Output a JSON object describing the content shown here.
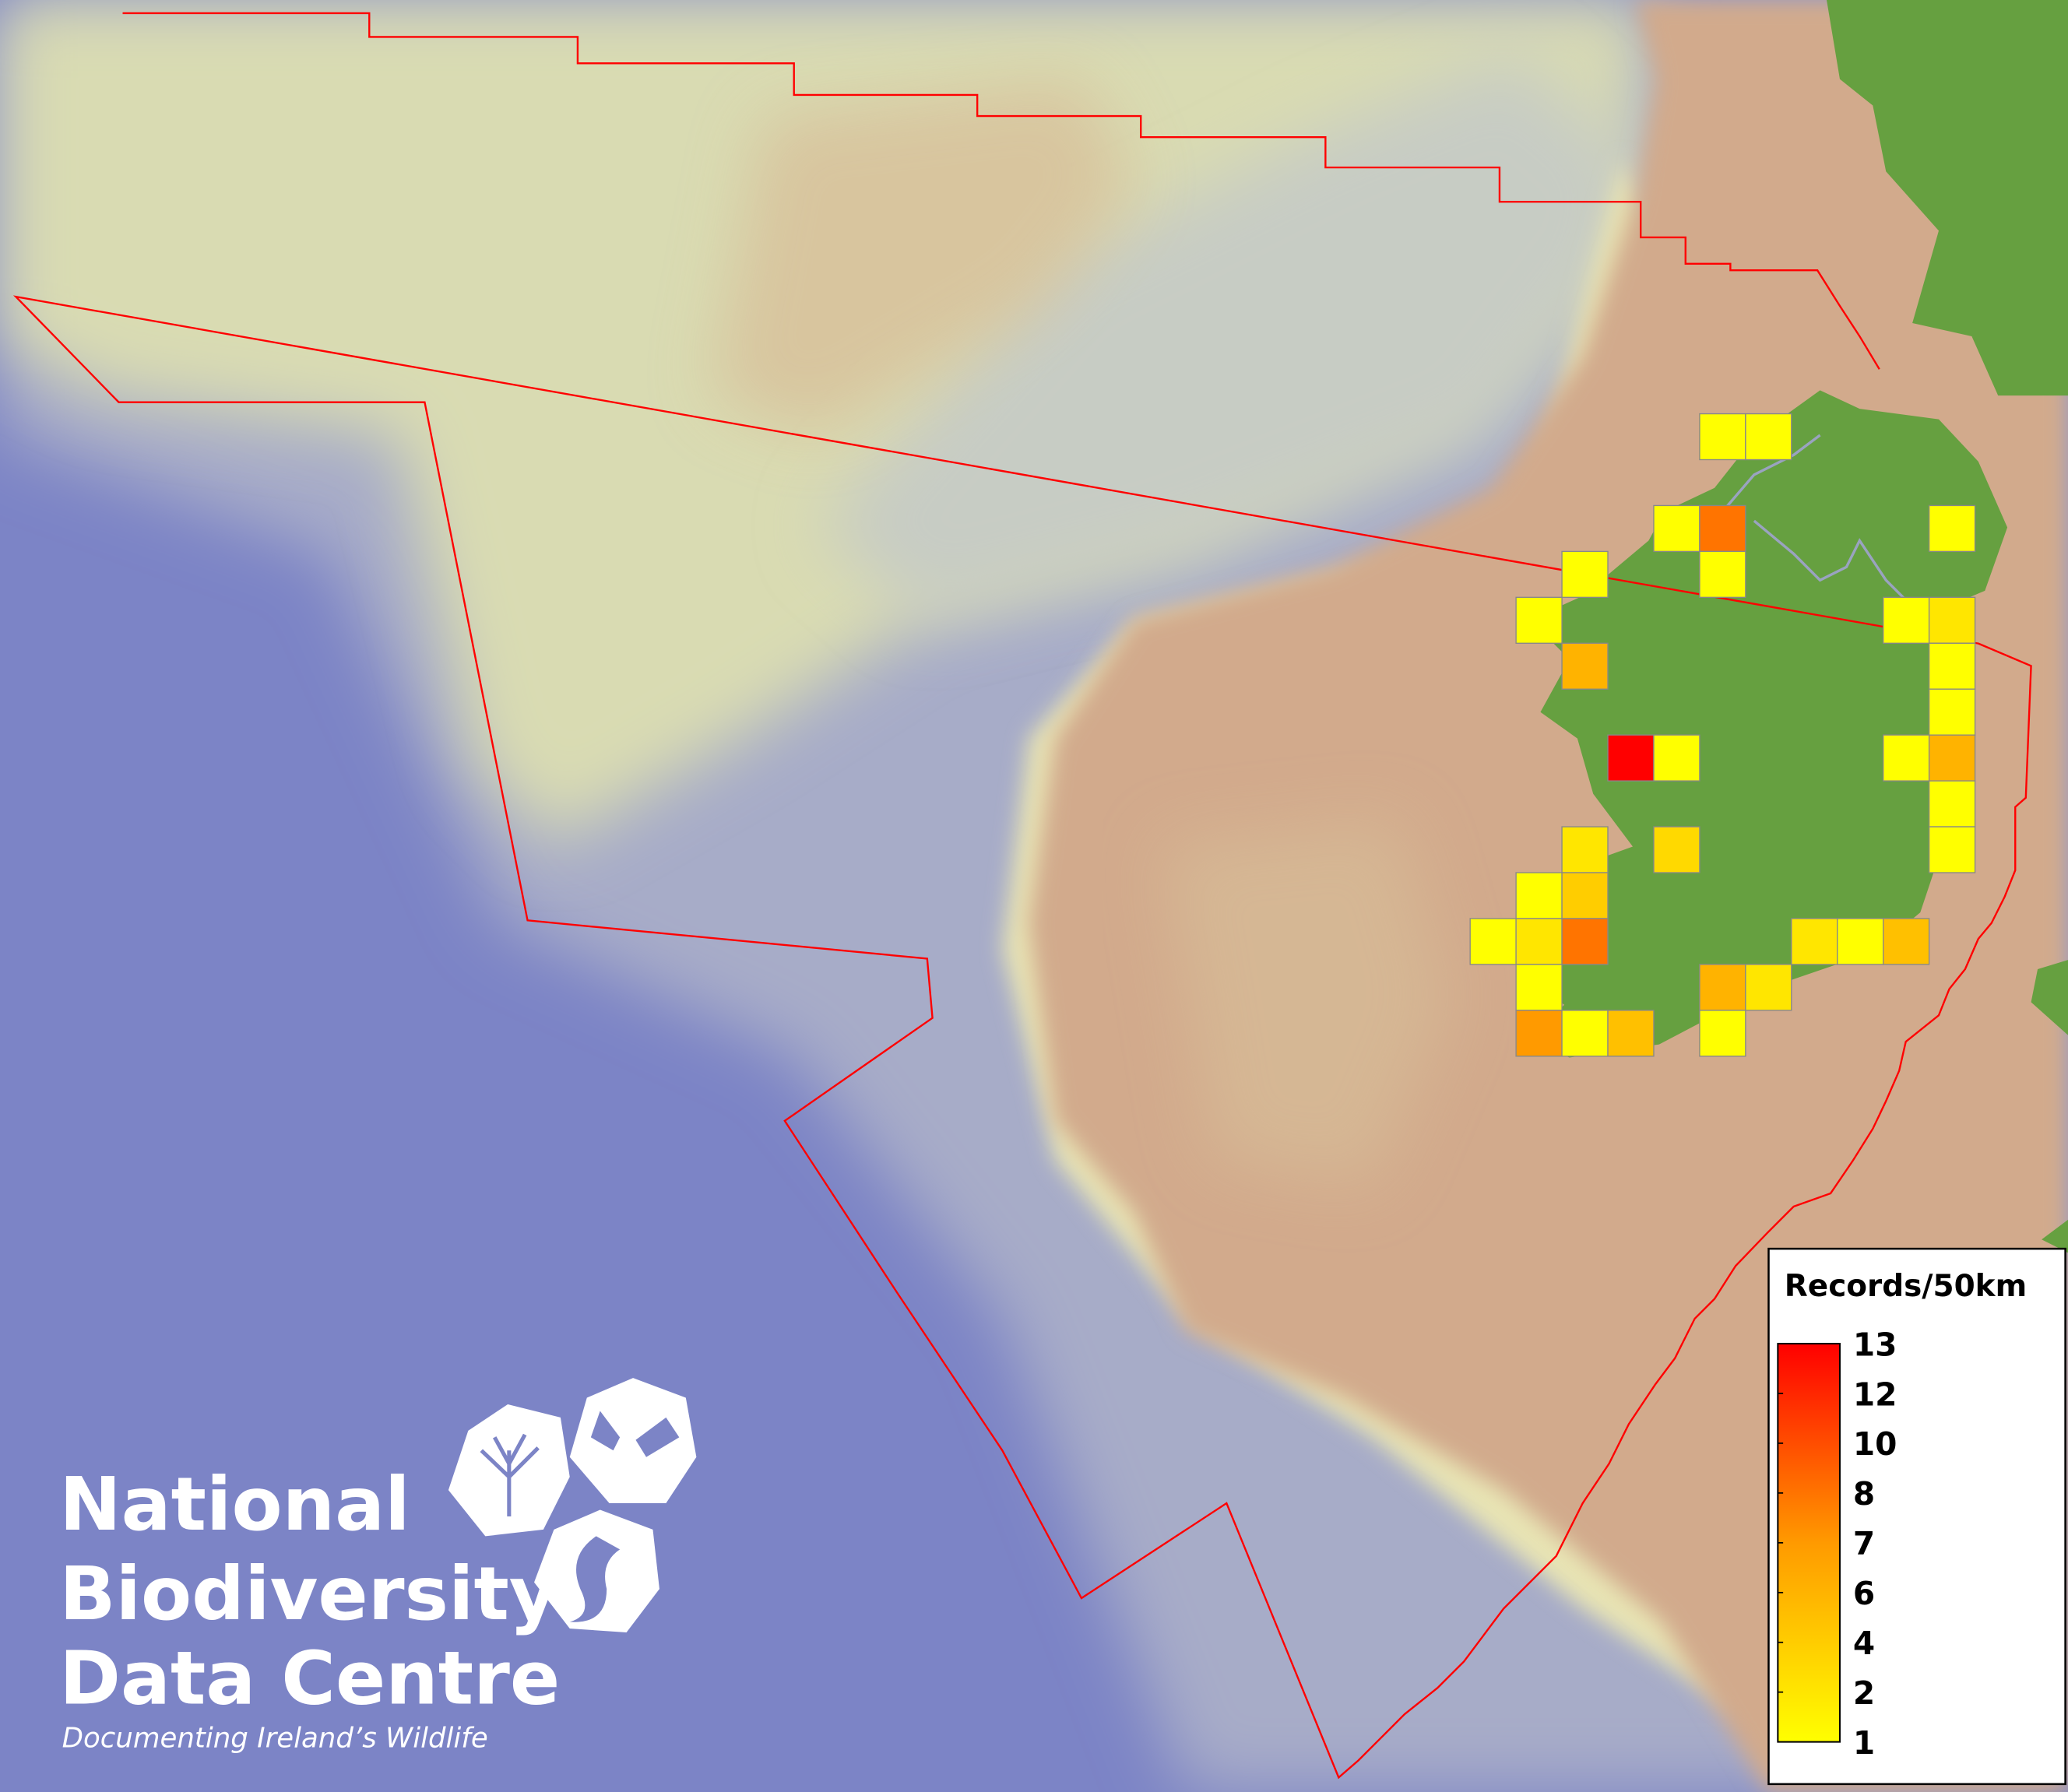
{
  "legend": {
    "title": "Records/50km",
    "ticks": [
      "13",
      "12",
      "10",
      "8",
      "7",
      "6",
      "4",
      "2",
      "1"
    ],
    "color_min": "#ffff00",
    "color_max": "#ff0000"
  },
  "logo": {
    "line1": "National",
    "line2": "Biodiversity",
    "line3": "Data Centre",
    "tagline": "Documenting Ireland’s Wildlife"
  },
  "colors": {
    "ocean_deep": "#7c84c6",
    "shelf": "#d2aa8c",
    "slope": "#dcdcae",
    "land": "#66a040",
    "boundary": "#ff0000",
    "cell_border": "#888888"
  },
  "grid_cells": [
    {
      "value": 1
    },
    {
      "value": 1
    },
    {
      "value": 1
    },
    {
      "value": 8
    },
    {
      "value": 1
    },
    {
      "value": 1
    },
    {
      "value": 1
    },
    {
      "value": 1
    },
    {
      "value": 1
    },
    {
      "value": 2
    },
    {
      "value": 6
    },
    {
      "value": 1
    },
    {
      "value": 1
    },
    {
      "value": 13
    },
    {
      "value": 1
    },
    {
      "value": 1
    },
    {
      "value": 6
    },
    {
      "value": 1
    },
    {
      "value": 2
    },
    {
      "value": 3
    },
    {
      "value": 1
    },
    {
      "value": 1
    },
    {
      "value": 4
    },
    {
      "value": 1
    },
    {
      "value": 2
    },
    {
      "value": 8
    },
    {
      "value": 2
    },
    {
      "value": 1
    },
    {
      "value": 5
    },
    {
      "value": 1
    },
    {
      "value": 6
    },
    {
      "value": 2
    },
    {
      "value": 7
    },
    {
      "value": 1
    },
    {
      "value": 5
    },
    {
      "value": 1
    }
  ]
}
